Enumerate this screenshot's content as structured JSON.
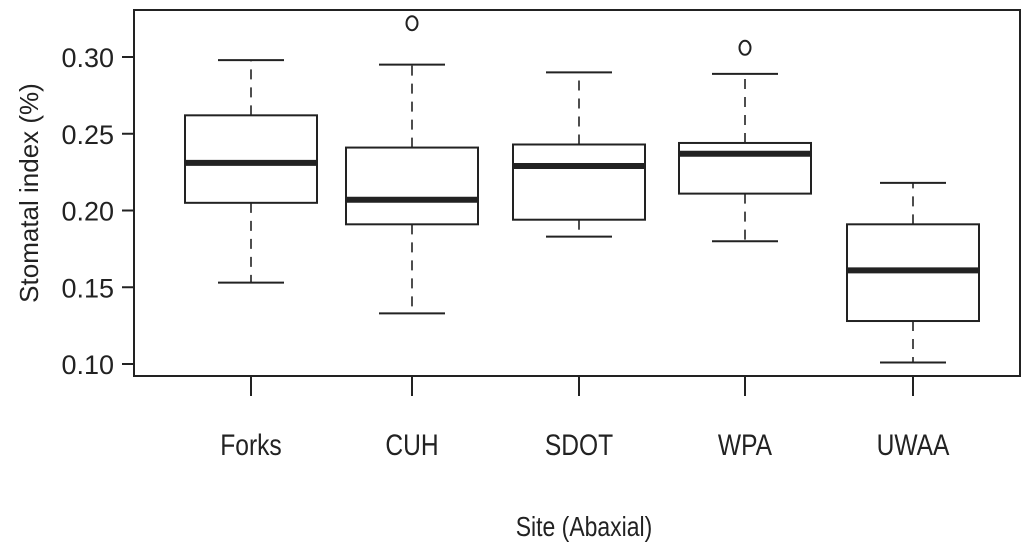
{
  "chart_data": {
    "type": "boxplot",
    "xlabel": "Site (Abaxial)",
    "ylabel": "Stomatal index (%)",
    "ylim": [
      0.09,
      0.34
    ],
    "yticks": [
      0.1,
      0.15,
      0.2,
      0.25,
      0.3
    ],
    "ytick_labels": [
      "0.10",
      "0.15",
      "0.20",
      "0.25",
      "0.30"
    ],
    "categories": [
      "Forks",
      "CUH",
      "SDOT",
      "WPA",
      "UWAA"
    ],
    "boxes": [
      {
        "category": "Forks",
        "whisker_low": 0.153,
        "q1": 0.205,
        "median": 0.231,
        "q3": 0.262,
        "whisker_high": 0.298,
        "outliers": []
      },
      {
        "category": "CUH",
        "whisker_low": 0.133,
        "q1": 0.191,
        "median": 0.207,
        "q3": 0.241,
        "whisker_high": 0.295,
        "outliers": [
          0.322
        ]
      },
      {
        "category": "SDOT",
        "whisker_low": 0.183,
        "q1": 0.194,
        "median": 0.229,
        "q3": 0.243,
        "whisker_high": 0.29,
        "outliers": []
      },
      {
        "category": "WPA",
        "whisker_low": 0.18,
        "q1": 0.211,
        "median": 0.237,
        "q3": 0.244,
        "whisker_high": 0.289,
        "outliers": [
          0.306
        ]
      },
      {
        "category": "UWAA",
        "whisker_low": 0.101,
        "q1": 0.128,
        "median": 0.161,
        "q3": 0.191,
        "whisker_high": 0.218,
        "outliers": []
      }
    ],
    "grid": false,
    "legend": "none"
  }
}
